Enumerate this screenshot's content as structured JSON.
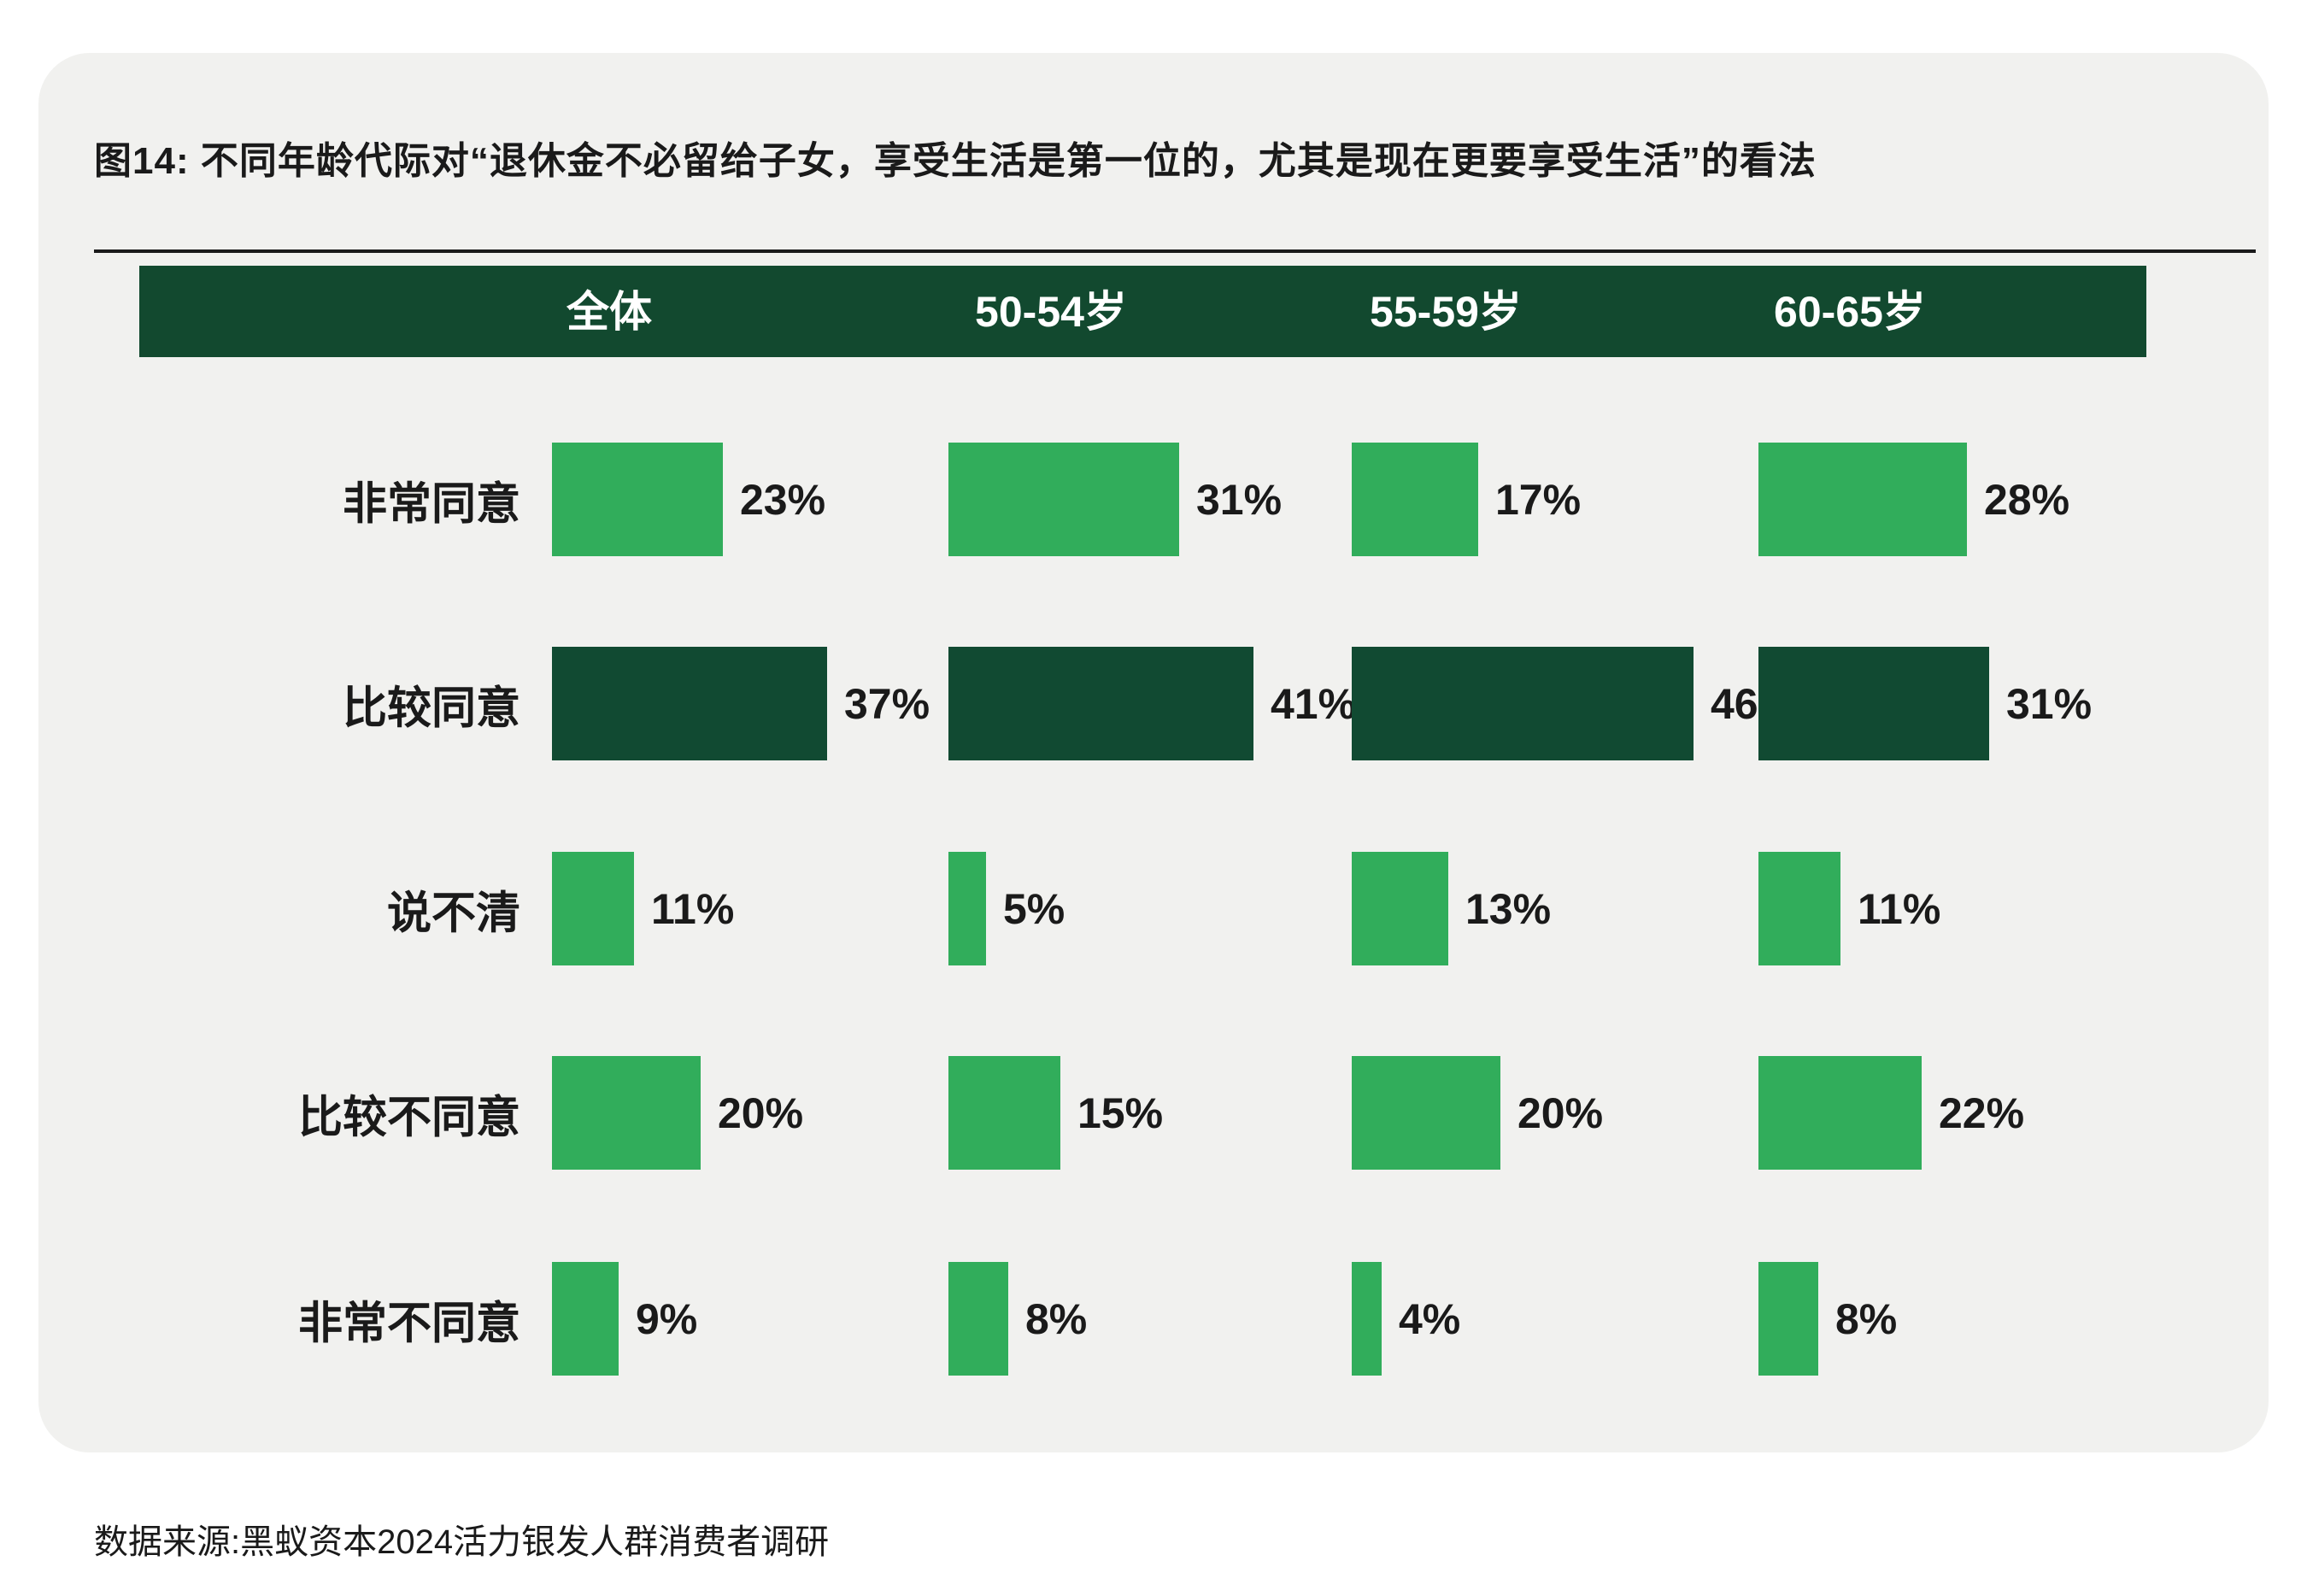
{
  "page": {
    "title": "图14: 不同年龄代际对“退休金不必留给子女，享受生活是第一位的，尤其是现在更要享受生活”的看法",
    "source": "数据来源:黑蚁资本2024活力银发人群消费者调研"
  },
  "colors": {
    "page_bg": "#FFFFFF",
    "card_bg": "#F1F1EF",
    "header_bar_bg": "#12492F",
    "header_text": "#FFFFFF",
    "bar_light_green": "#31AD5B",
    "bar_dark_green": "#114A32",
    "text": "#1A1A1A"
  },
  "chart_data": {
    "type": "bar",
    "orientation": "horizontal",
    "unit": "%",
    "title": "图14: 不同年龄代际对“退休金不必留给子女，享受生活是第一位的，尤其是现在更要享受生活”的看法",
    "column_headers": [
      "全体",
      "50-54岁",
      "55-59岁",
      "60-65岁"
    ],
    "categories": [
      "非常同意",
      "比较同意",
      "说不清",
      "比较不同意",
      "非常不同意"
    ],
    "series": [
      {
        "name": "全体",
        "values": [
          23,
          37,
          11,
          20,
          9
        ]
      },
      {
        "name": "50-54岁",
        "values": [
          31,
          41,
          5,
          15,
          8
        ]
      },
      {
        "name": "55-59岁",
        "values": [
          17,
          46,
          13,
          20,
          4
        ]
      },
      {
        "name": "60-65岁",
        "values": [
          28,
          31,
          11,
          22,
          8
        ]
      }
    ],
    "dark_row_index": 1,
    "value_label_format": "{value}%",
    "legend": "none",
    "grid": "off",
    "xlim": [
      0,
      50
    ]
  }
}
